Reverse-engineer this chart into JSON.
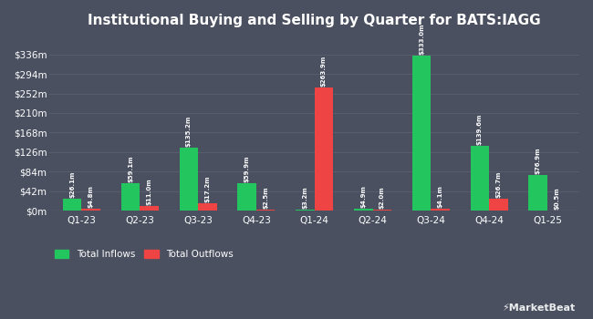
{
  "title": "Institutional Buying and Selling by Quarter for BATS:IAGG",
  "quarters": [
    "Q1-23",
    "Q2-23",
    "Q3-23",
    "Q4-23",
    "Q1-24",
    "Q2-24",
    "Q3-24",
    "Q4-24",
    "Q1-25"
  ],
  "inflows": [
    26.1,
    59.1,
    135.2,
    59.9,
    3.2,
    4.9,
    333.0,
    139.6,
    76.9
  ],
  "outflows": [
    4.8,
    11.0,
    17.2,
    2.5,
    263.9,
    2.0,
    4.1,
    26.7,
    0.5
  ],
  "inflow_labels": [
    "$26.1m",
    "$59.1m",
    "$135.2m",
    "$59.9m",
    "$3.2m",
    "$4.9m",
    "$333.0m",
    "$139.6m",
    "$76.9m"
  ],
  "outflow_labels": [
    "$4.8m",
    "$11.0m",
    "$17.2m",
    "$2.5m",
    "$263.9m",
    "$2.0m",
    "$4.1m",
    "$26.7m",
    "$0.5m"
  ],
  "inflow_color": "#22c55e",
  "outflow_color": "#ef4444",
  "background_color": "#4a5060",
  "grid_color": "#5a6070",
  "text_color": "#ffffff",
  "ytick_labels": [
    "$0m",
    "$42m",
    "$84m",
    "$126m",
    "$168m",
    "$210m",
    "$252m",
    "$294m",
    "$336m"
  ],
  "ytick_values": [
    0,
    42,
    84,
    126,
    168,
    210,
    252,
    294,
    336
  ],
  "ylim": [
    0,
    378
  ],
  "bar_width": 0.32,
  "legend_inflow": "Total Inflows",
  "legend_outflow": "Total Outflows"
}
